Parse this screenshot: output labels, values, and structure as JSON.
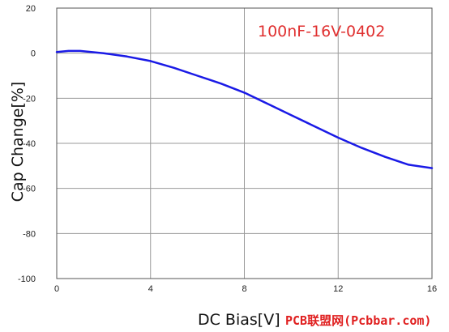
{
  "chart_data": {
    "type": "line",
    "title": "",
    "xlabel": "DC Bias[V]",
    "ylabel": "Cap Change[%]",
    "xlim": [
      0,
      16
    ],
    "ylim": [
      -100,
      20
    ],
    "x_ticks": [
      "0",
      "4",
      "8",
      "12",
      "16"
    ],
    "y_ticks": [
      "20",
      "0",
      "-20",
      "-40",
      "-60",
      "-80",
      "-100"
    ],
    "grid": true,
    "annotation": "100nF-16V-0402",
    "series": [
      {
        "color": "#1a1ae6",
        "x": [
          0,
          0.5,
          1,
          2,
          3,
          4,
          5,
          6,
          7,
          8,
          9,
          10,
          11,
          12,
          13,
          14,
          15,
          16
        ],
        "y": [
          0.5,
          1,
          1,
          0,
          -1.5,
          -3.5,
          -6.5,
          -10,
          -13.5,
          -17.5,
          -22.5,
          -27.5,
          -32.5,
          -37.5,
          -42,
          -46,
          -49.5,
          -51
        ]
      }
    ]
  },
  "watermark": "PCB联盟网(Pcbbar.com)",
  "colors": {
    "line": "#1a1ae6",
    "annotation": "#e03030",
    "watermark": "#e02020",
    "grid": "#9a9a9a"
  }
}
